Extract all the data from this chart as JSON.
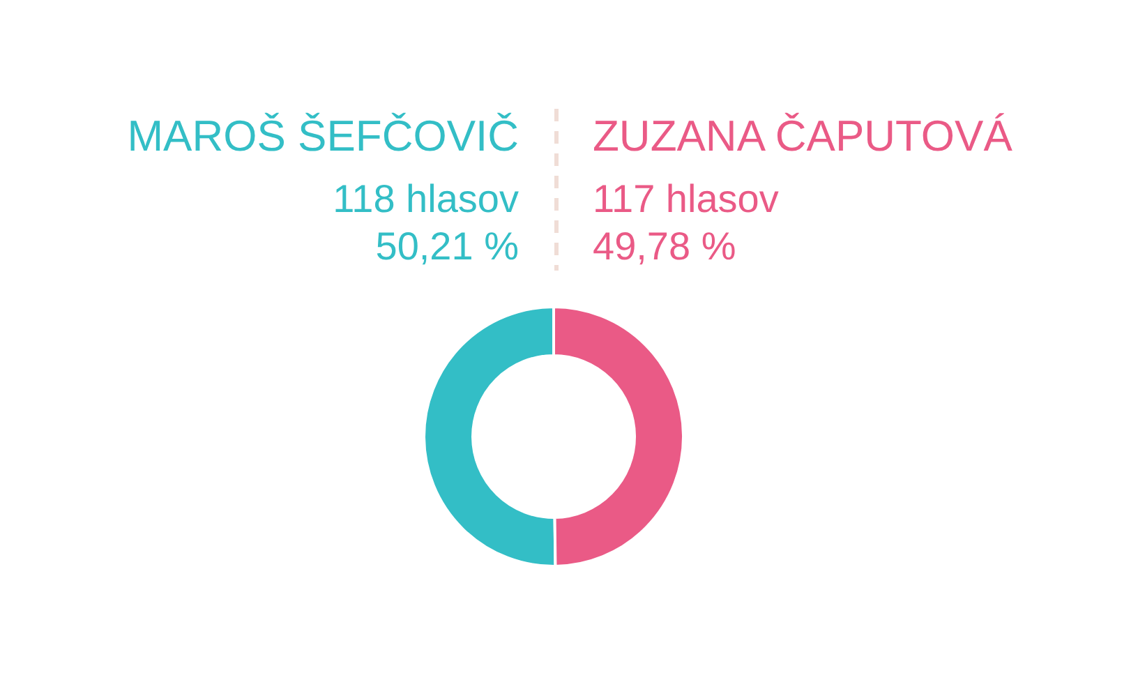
{
  "chart_data": {
    "type": "donut",
    "categories": [
      "MAROŠ ŠEFČOVIČ",
      "ZUZANA ČAPUTOVÁ"
    ],
    "values": [
      118,
      117
    ],
    "colors": [
      "#33bec6",
      "#ea5a86"
    ],
    "value_labels": [
      "118 hlasov",
      "117 hlasov"
    ],
    "annotations": [
      "50,21 %",
      "49,78 %"
    ]
  }
}
